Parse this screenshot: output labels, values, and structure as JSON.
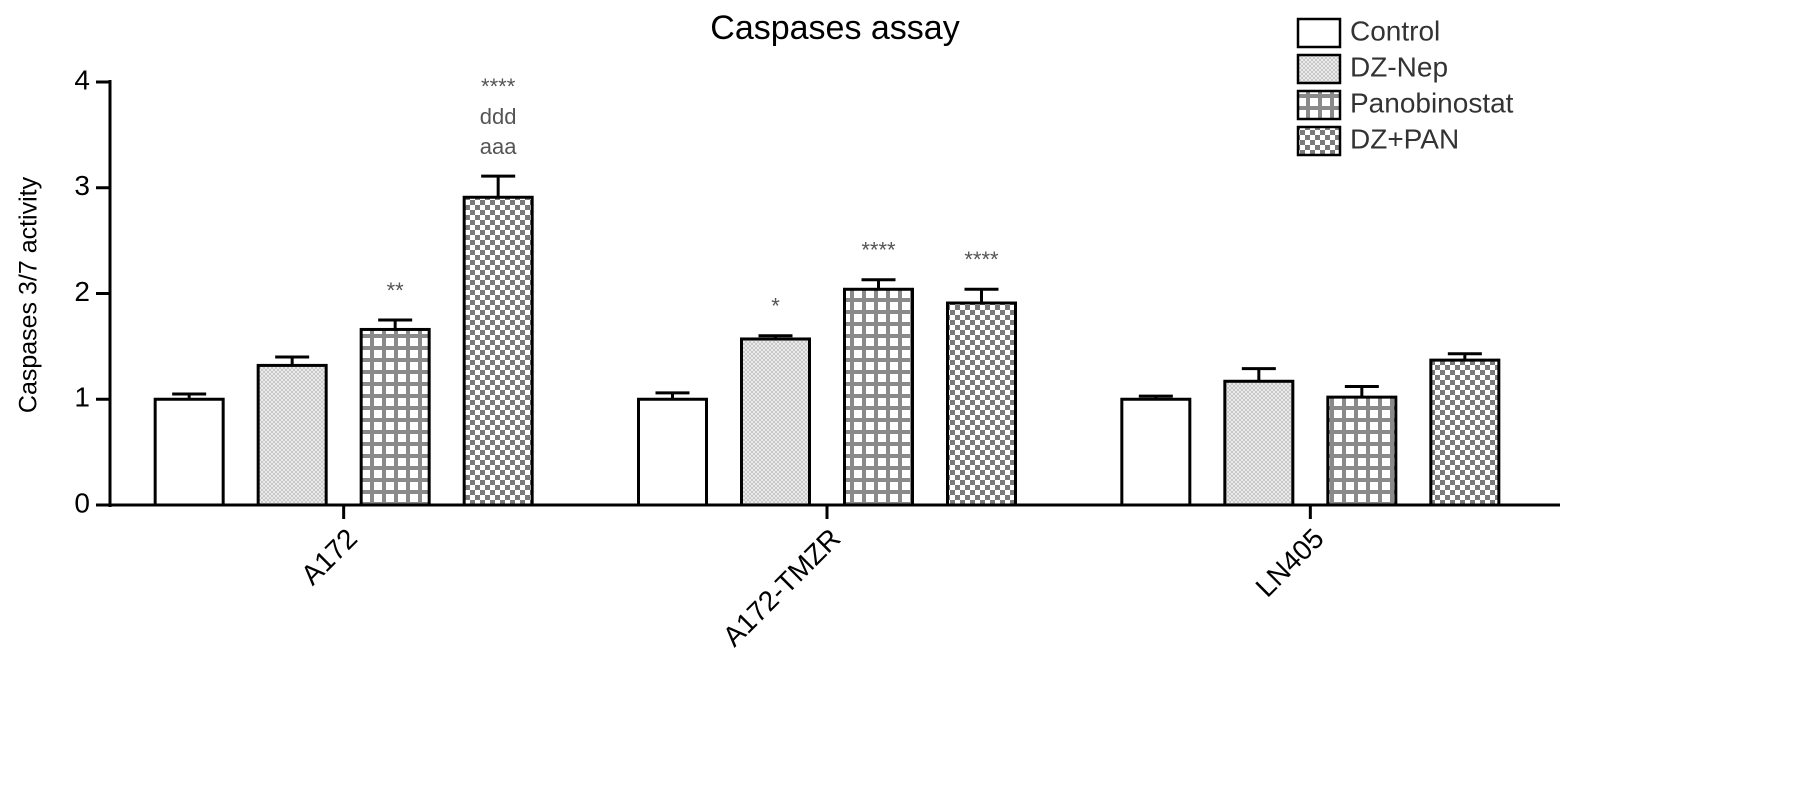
{
  "chart_data": {
    "type": "bar",
    "title": "Caspases assay",
    "y_label": "Caspases 3/7 activity",
    "categories": [
      "A172",
      "A172-TMZR",
      "LN405"
    ],
    "series": [
      {
        "name": "Control",
        "color": "#ffffff",
        "pattern": "solid",
        "values": [
          1.0,
          1.0,
          1.0
        ],
        "errors": [
          0.05,
          0.06,
          0.03
        ],
        "annotations": [
          null,
          null,
          null
        ]
      },
      {
        "name": "DZ-Nep",
        "color": "#c8c8c8",
        "pattern": "hatch",
        "values": [
          1.32,
          1.57,
          1.17
        ],
        "errors": [
          0.08,
          0.03,
          0.12
        ],
        "annotations": [
          null,
          [
            "*"
          ],
          null
        ]
      },
      {
        "name": "Panobinostat",
        "color": "#8a8a8a",
        "pattern": "grid",
        "values": [
          1.66,
          2.04,
          1.02
        ],
        "errors": [
          0.09,
          0.09,
          0.1
        ],
        "annotations": [
          [
            "**"
          ],
          [
            "****"
          ],
          null
        ]
      },
      {
        "name": "DZ+PAN",
        "color": "#7a7a7a",
        "pattern": "checker",
        "values": [
          2.91,
          1.91,
          1.37
        ],
        "errors": [
          0.2,
          0.13,
          0.06
        ],
        "annotations": [
          [
            "****",
            "ddd",
            "aaa"
          ],
          [
            "****"
          ],
          null
        ]
      }
    ],
    "ylim": [
      0,
      4
    ],
    "yticks": [
      0,
      1,
      2,
      3,
      4
    ],
    "legend": "upper right",
    "grid": false
  }
}
